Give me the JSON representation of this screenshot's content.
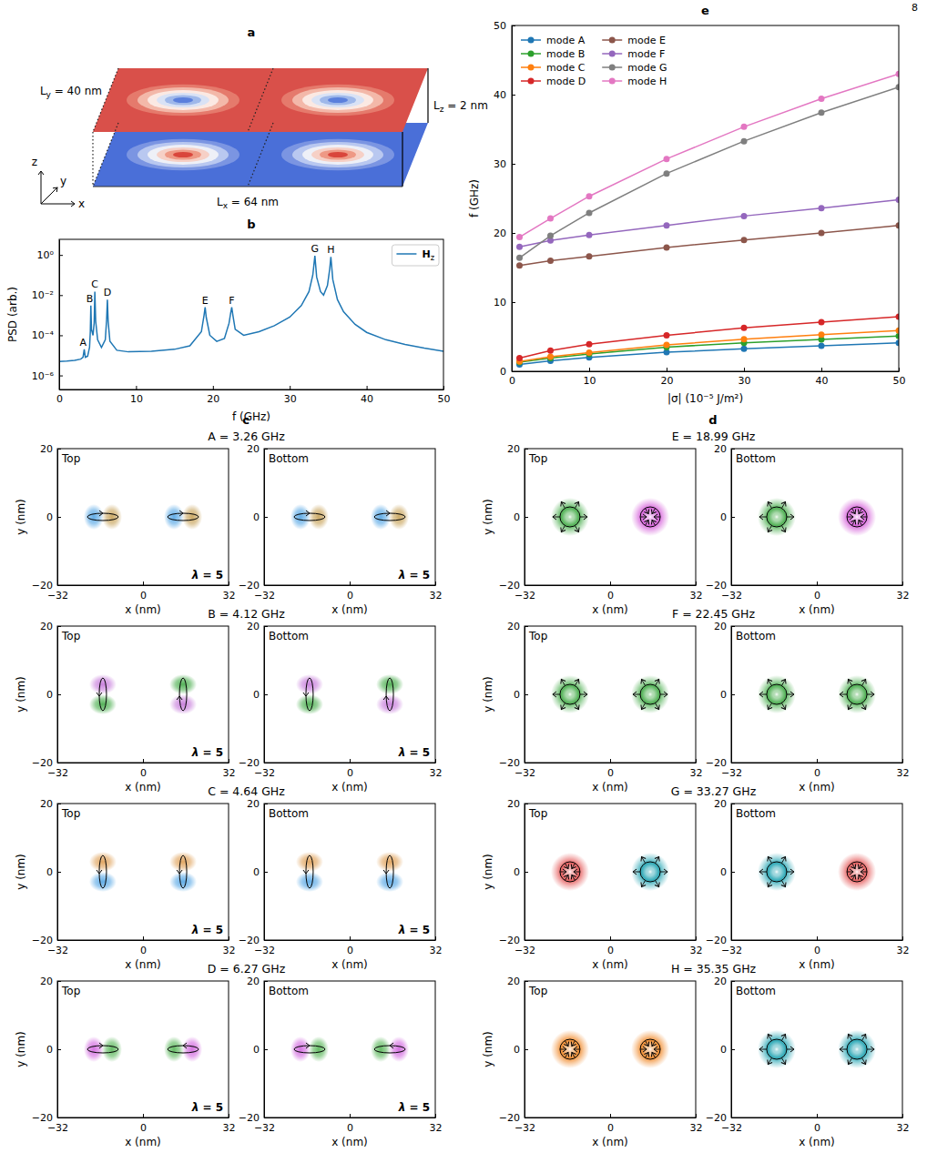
{
  "page_number": "8",
  "schematic": {
    "title": "a",
    "labels": [
      "Ly = 40 nm",
      "Lz = 2 nm",
      "Lx = 64 nm"
    ],
    "axes": [
      "x",
      "y",
      "z"
    ]
  },
  "group_titles": [
    "c",
    "d"
  ],
  "chart_data": [
    {
      "type": "line",
      "title": "b",
      "xlabel": "f (GHz)",
      "ylabel": "PSD (arb.)",
      "log": "y",
      "xlim": [
        0,
        50
      ],
      "ylim": [
        2e-07,
        6
      ],
      "xticks": [
        0,
        10,
        20,
        30,
        40,
        50
      ],
      "yticks": [
        {
          "value": 1e-06,
          "label": "10⁻⁶"
        },
        {
          "value": 0.0001,
          "label": "10⁻⁴"
        },
        {
          "value": 0.01,
          "label": "10⁻²"
        },
        {
          "value": 1,
          "label": "10⁰"
        }
      ],
      "legend": "upper right",
      "x": [
        0,
        1,
        2,
        2.8,
        3.1,
        3.26,
        3.4,
        3.7,
        3.95,
        4.05,
        4.12,
        4.2,
        4.4,
        4.55,
        4.64,
        4.75,
        5,
        5.5,
        6,
        6.17,
        6.27,
        6.37,
        6.6,
        7.5,
        9,
        12,
        15,
        17,
        18.5,
        18.85,
        18.99,
        19.13,
        19.6,
        20.5,
        21.5,
        22.1,
        22.3,
        22.45,
        22.6,
        22.9,
        24,
        26,
        28,
        30,
        31.5,
        32.5,
        33,
        33.27,
        33.5,
        34,
        34.4,
        34.9,
        35.2,
        35.35,
        35.6,
        36.2,
        37,
        38.5,
        40,
        42.5,
        45,
        47.5,
        50
      ],
      "series": [
        {
          "name": "Hz",
          "color": "#1f77b4",
          "values": [
            5e-06,
            5.2e-06,
            5.6e-06,
            6.5e-06,
            8e-06,
            2e-05,
            8e-06,
            9e-06,
            2.5e-05,
            0.00015,
            0.003,
            0.0002,
            0.0001,
            0.0004,
            0.015,
            0.0005,
            6e-05,
            2.5e-05,
            6e-05,
            0.0006,
            0.006,
            0.0005,
            5e-05,
            1.8e-05,
            1.5e-05,
            1.6e-05,
            2e-05,
            3e-05,
            0.00015,
            0.001,
            0.0025,
            0.0008,
            0.0001,
            5e-05,
            7e-05,
            0.0004,
            0.0012,
            0.0025,
            0.001,
            0.0002,
            0.0001,
            0.00015,
            0.0003,
            0.0008,
            0.003,
            0.015,
            0.1,
            0.9,
            0.08,
            0.015,
            0.01,
            0.03,
            0.2,
            0.8,
            0.06,
            0.006,
            0.0015,
            0.00035,
            0.00014,
            6e-05,
            3.5e-05,
            2.3e-05,
            1.6e-05
          ]
        }
      ],
      "annotations": [
        {
          "text": "A",
          "x": 3.26
        },
        {
          "text": "B",
          "x": 4.12
        },
        {
          "text": "C",
          "x": 4.64
        },
        {
          "text": "D",
          "x": 6.27
        },
        {
          "text": "E",
          "x": 18.99
        },
        {
          "text": "F",
          "x": 22.45
        },
        {
          "text": "G",
          "x": 33.27
        },
        {
          "text": "H",
          "x": 35.35
        }
      ]
    },
    {
      "type": "line",
      "title": "e",
      "xlabel": "|σ| (10⁻⁵ J/m²)",
      "ylabel": "f (GHz)",
      "xlim": [
        0,
        50
      ],
      "ylim": [
        0,
        50
      ],
      "xticks": [
        0,
        10,
        20,
        30,
        40,
        50
      ],
      "yticks": [
        0,
        10,
        20,
        30,
        40,
        50
      ],
      "legend": "upper left",
      "marker": "circle",
      "x": [
        1,
        5,
        10,
        20,
        30,
        40,
        50
      ],
      "series": [
        {
          "name": "mode A",
          "color": "#1f77b4",
          "values": [
            1.0,
            1.5,
            2.0,
            2.75,
            3.26,
            3.7,
            4.1
          ]
        },
        {
          "name": "mode B",
          "color": "#2ca02c",
          "values": [
            1.3,
            1.9,
            2.5,
            3.5,
            4.12,
            4.6,
            5.1
          ]
        },
        {
          "name": "mode C",
          "color": "#ff7f0e",
          "values": [
            1.4,
            2.1,
            2.7,
            3.8,
            4.64,
            5.3,
            5.9
          ]
        },
        {
          "name": "mode D",
          "color": "#d62728",
          "values": [
            1.9,
            3.0,
            3.9,
            5.2,
            6.27,
            7.1,
            7.9
          ]
        },
        {
          "name": "mode E",
          "color": "#8c564b",
          "values": [
            15.3,
            16.0,
            16.6,
            17.9,
            18.99,
            20.0,
            21.1
          ]
        },
        {
          "name": "mode F",
          "color": "#9467bd",
          "values": [
            18.0,
            18.9,
            19.7,
            21.1,
            22.45,
            23.6,
            24.8
          ]
        },
        {
          "name": "mode G",
          "color": "#7f7f7f",
          "values": [
            16.4,
            19.6,
            22.9,
            28.6,
            33.27,
            37.4,
            41.1
          ]
        },
        {
          "name": "mode H",
          "color": "#e377c2",
          "values": [
            19.4,
            22.1,
            25.3,
            30.7,
            35.35,
            39.4,
            43.0
          ]
        }
      ]
    },
    {
      "type": "mode_map",
      "title": "A = 3.26 GHz",
      "xlabel": "x (nm)",
      "ylabel": "y (nm)",
      "xlim": [
        -32,
        32
      ],
      "ylim": [
        -20,
        20
      ],
      "xticks": [
        {
          "value": -32,
          "label": "−32"
        },
        0,
        32
      ],
      "yticks": [
        {
          "value": -20,
          "label": "−20"
        },
        0,
        20
      ],
      "x": [
        -15,
        15
      ],
      "y": [
        0,
        0
      ],
      "layers": [
        {
          "name": "Top",
          "type": "dipole-x",
          "colors": [
            "#5aa9e6",
            "#c9a55e",
            "#5aa9e6",
            "#c9a55e"
          ],
          "marker": [
            "right",
            "right"
          ],
          "annotation": "λ = 5"
        },
        {
          "name": "Bottom",
          "type": "dipole-x",
          "colors": [
            "#5aa9e6",
            "#c9a55e",
            "#5aa9e6",
            "#c9a55e"
          ],
          "marker": [
            "right",
            "right"
          ],
          "annotation": "λ = 5"
        }
      ]
    },
    {
      "type": "mode_map",
      "title": "B = 4.12 GHz",
      "xlabel": "x (nm)",
      "ylabel": "y (nm)",
      "xlim": [
        -32,
        32
      ],
      "ylim": [
        -20,
        20
      ],
      "xticks": [
        {
          "value": -32,
          "label": "−32"
        },
        0,
        32
      ],
      "yticks": [
        {
          "value": -20,
          "label": "−20"
        },
        0,
        20
      ],
      "x": [
        -15,
        15
      ],
      "y": [
        0,
        0
      ],
      "layers": [
        {
          "name": "Top",
          "type": "dipole-y",
          "colors": [
            "#4caf50",
            "#c77ddb",
            "#c77ddb",
            "#4caf50"
          ],
          "marker": [
            "down",
            "up"
          ],
          "annotation": "λ = 5"
        },
        {
          "name": "Bottom",
          "type": "dipole-y",
          "colors": [
            "#4caf50",
            "#c77ddb",
            "#c77ddb",
            "#4caf50"
          ],
          "marker": [
            "down",
            "up"
          ],
          "annotation": "λ = 5"
        }
      ]
    },
    {
      "type": "mode_map",
      "title": "C = 4.64 GHz",
      "xlabel": "x (nm)",
      "ylabel": "y (nm)",
      "xlim": [
        -32,
        32
      ],
      "ylim": [
        -20,
        20
      ],
      "xticks": [
        {
          "value": -32,
          "label": "−32"
        },
        0,
        32
      ],
      "yticks": [
        {
          "value": -20,
          "label": "−20"
        },
        0,
        20
      ],
      "x": [
        -15,
        15
      ],
      "y": [
        0,
        0
      ],
      "layers": [
        {
          "name": "Top",
          "type": "dipole-y",
          "colors": [
            "#5aa9e6",
            "#e0a35c",
            "#5aa9e6",
            "#e0a35c"
          ],
          "marker": [
            "down",
            "down"
          ],
          "annotation": "λ = 5"
        },
        {
          "name": "Bottom",
          "type": "dipole-y",
          "colors": [
            "#5aa9e6",
            "#e0a35c",
            "#5aa9e6",
            "#e0a35c"
          ],
          "marker": [
            "down",
            "down"
          ],
          "annotation": "λ = 5"
        }
      ]
    },
    {
      "type": "mode_map",
      "title": "D = 6.27 GHz",
      "xlabel": "x (nm)",
      "ylabel": "y (nm)",
      "xlim": [
        -32,
        32
      ],
      "ylim": [
        -20,
        20
      ],
      "xticks": [
        {
          "value": -32,
          "label": "−32"
        },
        0,
        32
      ],
      "yticks": [
        {
          "value": -20,
          "label": "−20"
        },
        0,
        20
      ],
      "x": [
        -15,
        15
      ],
      "y": [
        0,
        0
      ],
      "layers": [
        {
          "name": "Top",
          "type": "dipole-x",
          "colors": [
            "#d36be0",
            "#5cb85c",
            "#5cb85c",
            "#d36be0"
          ],
          "marker": [
            "right",
            "left"
          ],
          "annotation": "λ = 5"
        },
        {
          "name": "Bottom",
          "type": "dipole-x",
          "colors": [
            "#d36be0",
            "#5cb85c",
            "#5cb85c",
            "#d36be0"
          ],
          "marker": [
            "right",
            "left"
          ],
          "annotation": "λ = 5"
        }
      ]
    },
    {
      "type": "mode_map",
      "title": "E = 18.99 GHz",
      "xlabel": "x (nm)",
      "ylabel": "y (nm)",
      "xlim": [
        -32,
        32
      ],
      "ylim": [
        -20,
        20
      ],
      "xticks": [
        {
          "value": -32,
          "label": "−32"
        },
        0,
        32
      ],
      "yticks": [
        {
          "value": -20,
          "label": "−20"
        },
        0,
        20
      ],
      "x": [
        -15,
        15
      ],
      "y": [
        0,
        0
      ],
      "layers": [
        {
          "name": "Top",
          "type": "breathing",
          "colors": [
            "#4caf50",
            "#d55fd9"
          ],
          "marker": [
            "outward",
            "inward"
          ]
        },
        {
          "name": "Bottom",
          "type": "breathing",
          "colors": [
            "#4caf50",
            "#d55fd9"
          ],
          "marker": [
            "outward",
            "inward"
          ]
        }
      ]
    },
    {
      "type": "mode_map",
      "title": "F = 22.45 GHz",
      "xlabel": "x (nm)",
      "ylabel": "y (nm)",
      "xlim": [
        -32,
        32
      ],
      "ylim": [
        -20,
        20
      ],
      "xticks": [
        {
          "value": -32,
          "label": "−32"
        },
        0,
        32
      ],
      "yticks": [
        {
          "value": -20,
          "label": "−20"
        },
        0,
        20
      ],
      "x": [
        -15,
        15
      ],
      "y": [
        0,
        0
      ],
      "layers": [
        {
          "name": "Top",
          "type": "breathing",
          "colors": [
            "#4caf50",
            "#4caf50"
          ],
          "marker": [
            "outward",
            "outward"
          ]
        },
        {
          "name": "Bottom",
          "type": "breathing",
          "colors": [
            "#4caf50",
            "#4caf50"
          ],
          "marker": [
            "outward",
            "outward"
          ]
        }
      ]
    },
    {
      "type": "mode_map",
      "title": "G = 33.27 GHz",
      "xlabel": "x (nm)",
      "ylabel": "y (nm)",
      "xlim": [
        -32,
        32
      ],
      "ylim": [
        -20,
        20
      ],
      "xticks": [
        {
          "value": -32,
          "label": "−32"
        },
        0,
        32
      ],
      "yticks": [
        {
          "value": -20,
          "label": "−20"
        },
        0,
        20
      ],
      "x": [
        -15,
        15
      ],
      "y": [
        0,
        0
      ],
      "layers": [
        {
          "name": "Top",
          "type": "breathing",
          "colors": [
            "#e55a5a",
            "#2aa7b5"
          ],
          "marker": [
            "inward",
            "outward"
          ]
        },
        {
          "name": "Bottom",
          "type": "breathing",
          "colors": [
            "#2aa7b5",
            "#e55a5a"
          ],
          "marker": [
            "outward",
            "inward"
          ]
        }
      ]
    },
    {
      "type": "mode_map",
      "title": "H = 35.35 GHz",
      "xlabel": "x (nm)",
      "ylabel": "y (nm)",
      "xlim": [
        -32,
        32
      ],
      "ylim": [
        -20,
        20
      ],
      "xticks": [
        {
          "value": -32,
          "label": "−32"
        },
        0,
        32
      ],
      "yticks": [
        {
          "value": -20,
          "label": "−20"
        },
        0,
        20
      ],
      "x": [
        -15,
        15
      ],
      "y": [
        0,
        0
      ],
      "layers": [
        {
          "name": "Top",
          "type": "breathing",
          "colors": [
            "#f08a2c",
            "#f08a2c"
          ],
          "marker": [
            "inward",
            "inward"
          ]
        },
        {
          "name": "Bottom",
          "type": "breathing",
          "colors": [
            "#2aa7b5",
            "#2aa7b5"
          ],
          "marker": [
            "outward",
            "outward"
          ]
        }
      ]
    }
  ]
}
